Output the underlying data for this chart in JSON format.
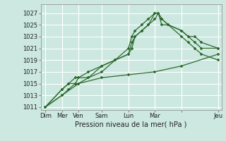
{
  "xlabel": "Pression niveau de la mer( hPa )",
  "background_color": "#cce8e0",
  "plot_bg_color": "#cce8e0",
  "grid_color": "#ffffff",
  "line_color": "#2d6a2d",
  "ylim": [
    1010.5,
    1028.5
  ],
  "yticks": [
    1011,
    1013,
    1015,
    1017,
    1019,
    1021,
    1023,
    1025,
    1027
  ],
  "xmax": 27,
  "day_positions": [
    0.5,
    3,
    5.5,
    9,
    13,
    17,
    21,
    26.5
  ],
  "day_labels": [
    "Dim",
    "Mer",
    "Ven",
    "Sam",
    "Lun",
    "Mar",
    "",
    "Jeu"
  ],
  "vline_positions": [
    0.5,
    3,
    5.5,
    9,
    13,
    17,
    21,
    26.5
  ],
  "series": [
    {
      "x": [
        0.5,
        3,
        4,
        5,
        5.5,
        7,
        9,
        11,
        13,
        13.5,
        14,
        15,
        16,
        17,
        17.5,
        18,
        19,
        21,
        22,
        23,
        24,
        26.5
      ],
      "y": [
        1011,
        1013,
        1014,
        1015,
        1015,
        1016,
        1017,
        1019,
        1020,
        1021,
        1023,
        1024,
        1025,
        1027,
        1027,
        1026,
        1025,
        1023,
        1022,
        1021,
        1020,
        1019
      ]
    },
    {
      "x": [
        0.5,
        3,
        4,
        5,
        5.5,
        7,
        9,
        11,
        13,
        13.5,
        14,
        15,
        16,
        17,
        17.5,
        18,
        19,
        21,
        22,
        23,
        24,
        26.5
      ],
      "y": [
        1011,
        1014,
        1015,
        1016,
        1016,
        1017,
        1018,
        1019,
        1021,
        1023,
        1024,
        1025,
        1026,
        1027,
        1027,
        1026,
        1025,
        1024,
        1023,
        1023,
        1022,
        1021
      ]
    },
    {
      "x": [
        0.5,
        3,
        4,
        5,
        5.5,
        7,
        9,
        11,
        13,
        13.5,
        14,
        15,
        16,
        17,
        17.5,
        18,
        19,
        21,
        22,
        23,
        24,
        26.5
      ],
      "y": [
        1011,
        1014,
        1015,
        1015,
        1016,
        1016,
        1018,
        1019,
        1020,
        1022,
        1023,
        1024,
        1025,
        1026,
        1027,
        1025,
        1025,
        1024,
        1023,
        1022,
        1021,
        1021
      ]
    },
    {
      "x": [
        0.5,
        3,
        5.5,
        9,
        13,
        17,
        21,
        26.5
      ],
      "y": [
        1011,
        1013,
        1015,
        1016,
        1016.5,
        1017,
        1018,
        1020
      ]
    }
  ]
}
